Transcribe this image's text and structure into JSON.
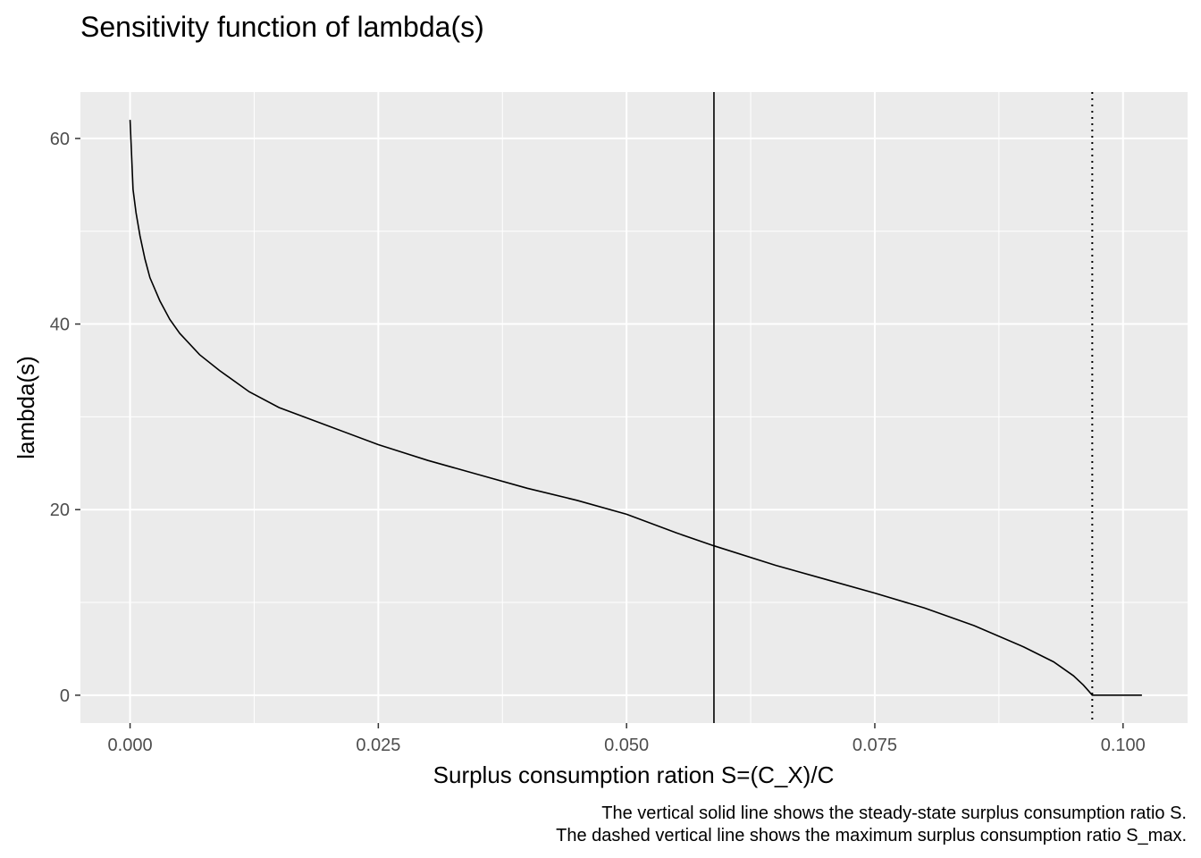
{
  "chart_data": {
    "type": "line",
    "title": "Sensitivity function of lambda(s)",
    "xlabel": "Surplus consumption ration S=(C_X)/C",
    "ylabel": "lambda(s)",
    "xlim": [
      -0.005,
      0.1065
    ],
    "ylim": [
      -3,
      65
    ],
    "x_ticks": [
      0.0,
      0.025,
      0.05,
      0.075,
      0.1
    ],
    "x_tick_labels": [
      "0.000",
      "0.025",
      "0.050",
      "0.075",
      "0.100"
    ],
    "y_ticks": [
      0,
      20,
      40,
      60
    ],
    "y_tick_labels": [
      "0",
      "20",
      "40",
      "60"
    ],
    "grid": true,
    "background": "#ebebeb",
    "grid_color": "#ffffff",
    "line_color": "#000000",
    "steady_state_S": 0.0588,
    "max_S": 0.0969,
    "captions": [
      "The vertical solid line shows the steady-state surplus consumption ratio S.",
      "The dashed vertical line shows the maximum surplus consumption ratio S_max."
    ],
    "series": [
      {
        "x": [
          0.0,
          0.0001,
          0.0003,
          0.0006,
          0.001,
          0.0015,
          0.002,
          0.003,
          0.004,
          0.005,
          0.007,
          0.009,
          0.012,
          0.015,
          0.02,
          0.025,
          0.03,
          0.035,
          0.04,
          0.045,
          0.05,
          0.055,
          0.0588,
          0.065,
          0.07,
          0.075,
          0.08,
          0.085,
          0.09,
          0.093,
          0.095,
          0.096,
          0.0965,
          0.0969,
          0.1,
          0.1019
        ],
        "y": [
          62,
          59.5,
          54.5,
          52,
          49.5,
          47,
          45,
          42.5,
          40.5,
          39,
          36.7,
          35,
          32.7,
          31,
          29,
          27,
          25.3,
          23.8,
          22.3,
          21,
          19.5,
          17.5,
          16.1,
          14,
          12.5,
          11,
          9.4,
          7.5,
          5.2,
          3.6,
          2.1,
          1.1,
          0.5,
          0,
          0,
          0
        ]
      }
    ]
  }
}
